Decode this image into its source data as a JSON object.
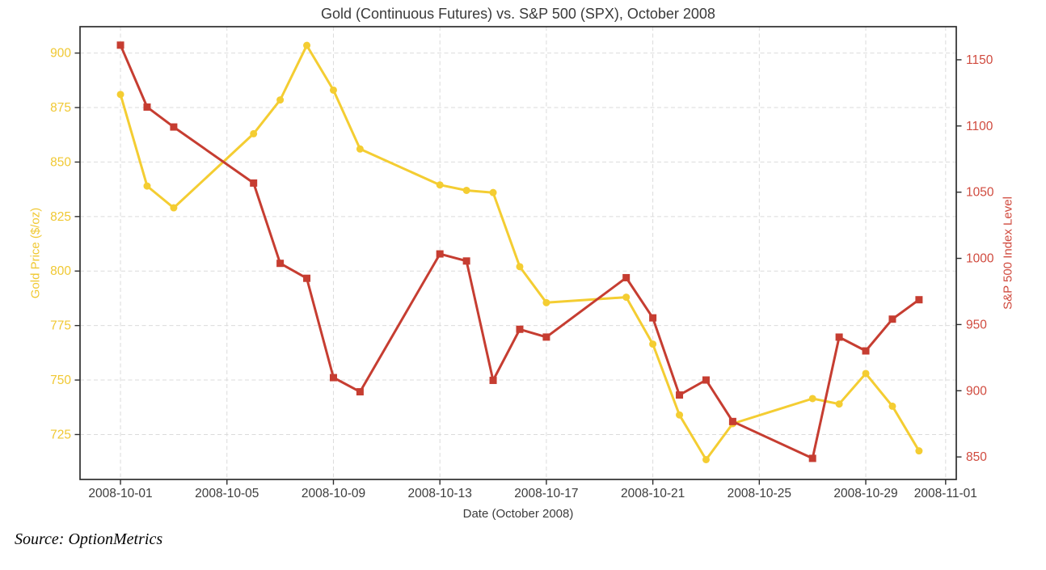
{
  "source_caption": "Source: OptionMetrics",
  "chart_data": {
    "type": "line",
    "title": "Gold (Continuous Futures) vs. S&P 500 (SPX), October 2008",
    "xlabel": "Date (October 2008)",
    "grid": true,
    "legend_position": "none",
    "background": "#ffffff",
    "x_dates": [
      "2008-10-01",
      "2008-10-02",
      "2008-10-03",
      "2008-10-06",
      "2008-10-07",
      "2008-10-08",
      "2008-10-09",
      "2008-10-10",
      "2008-10-13",
      "2008-10-14",
      "2008-10-15",
      "2008-10-16",
      "2008-10-17",
      "2008-10-20",
      "2008-10-21",
      "2008-10-22",
      "2008-10-23",
      "2008-10-24",
      "2008-10-27",
      "2008-10-28",
      "2008-10-29",
      "2008-10-30",
      "2008-10-31"
    ],
    "series": [
      {
        "name": "Gold (Continuous Futures)",
        "axis": "left",
        "color": "#f4cd32",
        "marker": "circle",
        "line_width": 3,
        "values": [
          881,
          839,
          829,
          863,
          878.5,
          903.5,
          883,
          856,
          839.5,
          837,
          836,
          802,
          785.5,
          788,
          766.5,
          734,
          713.5,
          730,
          741.5,
          739,
          753,
          738,
          717.5
        ]
      },
      {
        "name": "S&P 500 (SPX)",
        "axis": "right",
        "color": "#c63d31",
        "marker": "square",
        "line_width": 3,
        "values": [
          1161.06,
          1114.28,
          1099.23,
          1056.89,
          996.23,
          984.94,
          909.92,
          899.22,
          1003.35,
          998.01,
          907.84,
          946.43,
          940.55,
          985.4,
          955.05,
          896.78,
          908.11,
          876.77,
          848.92,
          940.51,
          930.09,
          954.09,
          968.75
        ]
      }
    ],
    "left_axis": {
      "label": "Gold Price ($/oz)",
      "ticks": [
        725,
        750,
        775,
        800,
        825,
        850,
        875,
        900
      ],
      "range": [
        704.4,
        912.1
      ],
      "color": "#f0c832"
    },
    "right_axis": {
      "label": "S&P 500 Index Level",
      "ticks": [
        850,
        900,
        950,
        1000,
        1050,
        1100,
        1150
      ],
      "range": [
        833,
        1175
      ],
      "color": "#d04a3e"
    },
    "x_ticks": [
      "2008-10-01",
      "2008-10-05",
      "2008-10-09",
      "2008-10-13",
      "2008-10-17",
      "2008-10-21",
      "2008-10-25",
      "2008-10-29",
      "2008-11-01"
    ],
    "x_range_days": [
      -1.52,
      31.4
    ],
    "tick_label_color_x": "#3c3c3c",
    "grid_color": "#dbdbdb",
    "spine_color": "#2d2d2d"
  }
}
